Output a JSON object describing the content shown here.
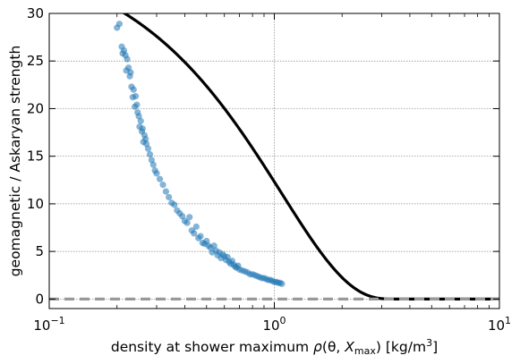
{
  "chart_data": {
    "type": "scatter",
    "title": "",
    "xlabel_parts": {
      "pre": "density at shower maximum ",
      "rho": "ρ",
      "args_open": "(θ, ",
      "xvar": "X",
      "xsub": "max",
      "args_close": ")",
      "units_pre": " [kg/m",
      "units_exp": "3",
      "units_post": "]"
    },
    "ylabel": "geomagnetic / Askaryan strength",
    "x_scale": "log",
    "xlim": [
      0.1,
      10
    ],
    "ylim": [
      -1,
      30
    ],
    "grid": true,
    "x_ticks": [
      {
        "value": 0.1,
        "base": "10",
        "exp": "−1"
      },
      {
        "value": 1,
        "base": "10",
        "exp": "0"
      },
      {
        "value": 10,
        "base": "10",
        "exp": "1"
      }
    ],
    "y_ticks": [
      {
        "value": 0,
        "label": "0"
      },
      {
        "value": 5,
        "label": "5"
      },
      {
        "value": 10,
        "label": "10"
      },
      {
        "value": 15,
        "label": "15"
      },
      {
        "value": 20,
        "label": "20"
      },
      {
        "value": 25,
        "label": "25"
      },
      {
        "value": 30,
        "label": "30"
      }
    ],
    "series": [
      {
        "kind": "points",
        "color": "#1f77b4",
        "x": [
          0.2,
          0.205,
          0.21,
          0.212,
          0.215,
          0.218,
          0.22,
          0.222,
          0.225,
          0.228,
          0.23,
          0.232,
          0.235,
          0.237,
          0.24,
          0.242,
          0.245,
          0.247,
          0.25,
          0.252,
          0.255,
          0.258,
          0.26,
          0.262,
          0.265,
          0.268,
          0.27,
          0.275,
          0.28,
          0.285,
          0.29,
          0.295,
          0.3,
          0.31,
          0.32,
          0.33,
          0.34,
          0.35,
          0.36,
          0.37,
          0.38,
          0.39,
          0.4,
          0.41,
          0.42,
          0.43,
          0.44,
          0.45,
          0.46,
          0.47,
          0.48,
          0.49,
          0.5,
          0.51,
          0.52,
          0.53,
          0.54,
          0.55,
          0.56,
          0.57,
          0.58,
          0.59,
          0.6,
          0.61,
          0.62,
          0.63,
          0.64,
          0.65,
          0.66,
          0.67,
          0.68,
          0.69,
          0.7,
          0.72,
          0.74,
          0.76,
          0.78,
          0.8,
          0.82,
          0.84,
          0.86,
          0.88,
          0.9,
          0.92,
          0.94,
          0.96,
          0.98,
          1.0,
          1.02,
          1.04,
          1.06,
          1.08
        ],
        "y": [
          28.5,
          28.9,
          26.5,
          25.8,
          26.1,
          25.6,
          24.0,
          25.2,
          24.3,
          23.4,
          23.8,
          22.3,
          21.2,
          22.0,
          20.2,
          21.3,
          20.4,
          19.6,
          19.2,
          18.1,
          18.7,
          17.6,
          17.9,
          16.5,
          17.2,
          16.8,
          16.3,
          15.8,
          15.2,
          14.6,
          14.1,
          13.5,
          13.2,
          12.6,
          12.0,
          11.3,
          10.7,
          10.1,
          9.9,
          9.3,
          9.0,
          8.7,
          8.2,
          8.0,
          8.6,
          7.2,
          6.9,
          7.6,
          6.4,
          6.6,
          5.9,
          5.8,
          6.1,
          5.6,
          5.4,
          4.9,
          5.6,
          5.1,
          4.6,
          4.9,
          4.3,
          4.7,
          4.5,
          4.1,
          4.4,
          3.9,
          3.7,
          4.0,
          3.6,
          3.4,
          3.3,
          3.5,
          3.1,
          3.0,
          2.9,
          2.8,
          2.6,
          2.6,
          2.5,
          2.4,
          2.3,
          2.2,
          2.2,
          2.1,
          2.0,
          2.0,
          1.9,
          1.8,
          1.8,
          1.7,
          1.7,
          1.6
        ]
      },
      {
        "kind": "curve",
        "color": "#000000",
        "x_range": [
          0.2,
          10
        ]
      },
      {
        "kind": "hline",
        "color": "#999999",
        "dashed": true,
        "y": 0
      }
    ]
  }
}
